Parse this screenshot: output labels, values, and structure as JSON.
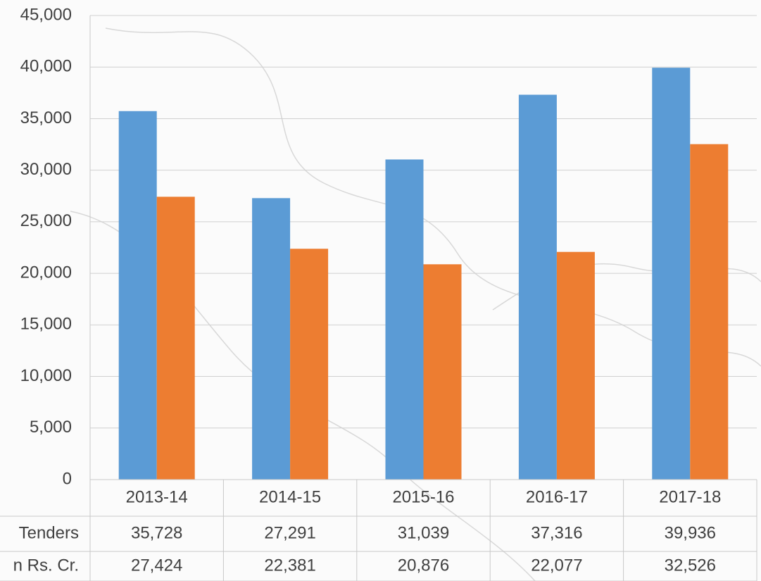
{
  "chart_data": {
    "type": "bar",
    "categories": [
      "2013-14",
      "2014-15",
      "2015-16",
      "2016-17",
      "2017-18"
    ],
    "series": [
      {
        "name": "Tenders",
        "color": "#5b9bd5",
        "values": [
          35728,
          27291,
          31039,
          37316,
          39936
        ],
        "value_labels": [
          "35,728",
          "27,291",
          "31,039",
          "37,316",
          "39,936"
        ]
      },
      {
        "name": "n Rs. Cr.",
        "color": "#ed7d31",
        "values": [
          27424,
          22381,
          20876,
          22077,
          32526
        ],
        "value_labels": [
          "27,424",
          "22,381",
          "20,876",
          "22,077",
          "32,526"
        ]
      }
    ],
    "ylim": [
      0,
      45000
    ],
    "yticks": [
      0,
      {
        "value": 5000,
        "label": "5,000"
      },
      {
        "value": 10000,
        "label": "10,000"
      },
      {
        "value": 15000,
        "label": "15,000"
      },
      {
        "value": 20000,
        "label": "20,000"
      },
      {
        "value": 25000,
        "label": "25,000"
      },
      {
        "value": 30000,
        "label": "30,000"
      },
      {
        "value": 35000,
        "label": "35,000"
      },
      {
        "value": 40000,
        "label": "40,000"
      },
      {
        "value": 45000,
        "label": "45,000"
      }
    ],
    "grid": true
  }
}
